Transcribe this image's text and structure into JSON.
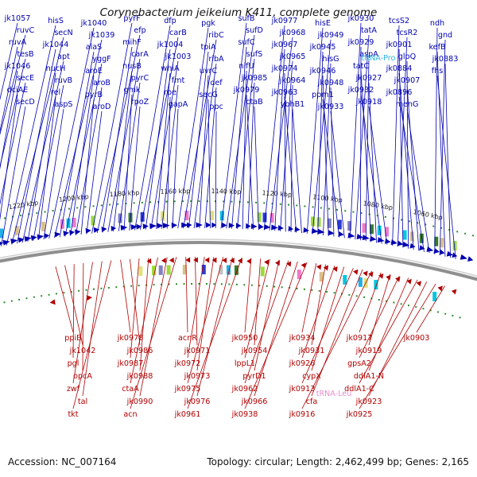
{
  "title": "Corynebacterium jeikeium K411, complete genome",
  "footer": {
    "accession": "Accession: NC_007164",
    "summary": "Topology: circular; Length: 2,462,499 bp; Genes: 2,165"
  },
  "colors": {
    "forward": "#0000b0",
    "reverse": "#b00000",
    "trna_forward": "#2fb3e6",
    "trna_reverse": "#e58ed0",
    "backbone": "#8f8f8f",
    "tick_dots": "#2e8b2e"
  },
  "tick_labels": [
    "1240 kbp",
    "1220 kbp",
    "1200 kbp",
    "1180 kbp",
    "1160 kbp",
    "1140 kbp",
    "1120 kbp",
    "1100 kbp",
    "1080 kbp",
    "1060 kbp"
  ],
  "forward_labels": [
    "jk1057",
    "ruvC",
    "ruvA",
    "tesB",
    "jk1046",
    "secE",
    "dciAE",
    "secD",
    "hisS",
    "secN",
    "jk1044",
    "apt",
    "nucH",
    "ruvB",
    "rel",
    "aspS",
    "jk1040",
    "jk1039",
    "alaS",
    "yggF",
    "aroE",
    "aroB",
    "pyrB",
    "aroD",
    "pyrF",
    "efp",
    "mihF",
    "carA",
    "nusB",
    "pyrC",
    "gmk",
    "rpoZ",
    "dfp",
    "carB",
    "jk1004",
    "jk1003",
    "whiA",
    "fmt",
    "rpe",
    "gapA",
    "pgk",
    "ribC",
    "tpiA",
    "ribA",
    "uvrC",
    "def",
    "secG",
    "ppc",
    "sufB",
    "sufD",
    "sufC",
    "sufS",
    "nifU",
    "jk0985",
    "jk0979",
    "ctaB",
    "jk0977",
    "jk0968",
    "jk0967",
    "jk0965",
    "jk0974",
    "jk0964",
    "jk0963",
    "ybhB1",
    "hisE",
    "jk0949",
    "jk0945",
    "hisG",
    "jk0946",
    "jk0948",
    "ppm1",
    "jk0933",
    "jk0930",
    "tatA",
    "jk0929",
    "aspA",
    "tatC",
    "jk0927",
    "jk0932",
    "jk0918",
    "tcsS2",
    "tcsR2",
    "jk0901",
    "glpQ",
    "jk0884",
    "jk0907",
    "jk0896",
    "menG",
    "ndh",
    "gnd",
    "kefB",
    "jk0883",
    "fhs"
  ],
  "trna_forward_labels": [
    "tRNA-Pro"
  ],
  "reverse_labels": [
    "ppiB",
    "jk1042",
    "pgl",
    "opcA",
    "zwf",
    "tal",
    "tkt",
    "jk0978",
    "jk0986",
    "jk0987",
    "jk0988",
    "ctaA",
    "jk0990",
    "acn",
    "acnR",
    "jk0971",
    "jk0972",
    "jk0973",
    "jk0975",
    "jk0976",
    "jk0961",
    "jk0950",
    "jk0954",
    "lppL1",
    "pyrD1",
    "jk0962",
    "jk0966",
    "jk0938",
    "jk0934",
    "jk0931",
    "jk0926",
    "cypX",
    "jk0913",
    "cfa",
    "jk0916",
    "jk0917",
    "jk0919",
    "gpsA2",
    "ddlA1-N",
    "ddlA1-C",
    "jk0923",
    "jk0925",
    "jk0903"
  ],
  "trna_reverse_labels": [
    "tRNA-Leu"
  ]
}
